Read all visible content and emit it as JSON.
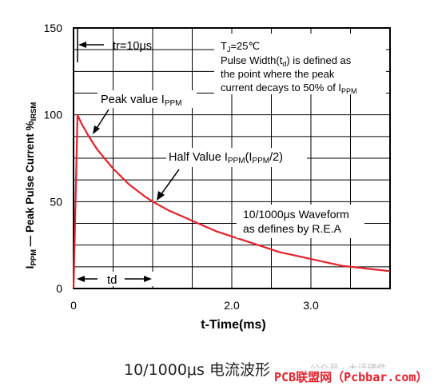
{
  "chart_data": {
    "type": "line",
    "title": "",
    "xlabel": "t-Time(ms)",
    "ylabel_parts": {
      "sym": "I",
      "sub": "PPM",
      "dash": " — Peak Pulse Current  %",
      "sub2": "IRSM"
    },
    "xlim": [
      0,
      4.0
    ],
    "ylim": [
      0,
      150
    ],
    "x_ticks": [
      {
        "value": 0,
        "label": "0"
      },
      {
        "value": 2.0,
        "label": "2.0"
      },
      {
        "value": 3.0,
        "label": "3.0"
      }
    ],
    "y_ticks": [
      {
        "value": 0,
        "label": "0"
      },
      {
        "value": 50,
        "label": "50"
      },
      {
        "value": 100,
        "label": "100"
      },
      {
        "value": 150,
        "label": "150"
      }
    ],
    "grid": true,
    "series": [
      {
        "color": "#e8202a",
        "x": [
          0,
          0.05,
          0.1,
          0.2,
          0.3,
          0.5,
          0.7,
          0.9,
          1.0,
          1.2,
          1.4,
          1.6,
          1.8,
          2.0,
          2.2,
          2.4,
          2.6,
          2.8,
          3.0,
          3.2,
          3.4,
          3.6,
          3.8,
          4.0
        ],
        "y": [
          0,
          100,
          95,
          87,
          80,
          69,
          60,
          53,
          50,
          45,
          41,
          37,
          33,
          30,
          27,
          24,
          21,
          19,
          17,
          15,
          13,
          12,
          11,
          10
        ]
      }
    ],
    "annotations": {
      "tr": "tr=10μs",
      "td": "td",
      "peak": {
        "pre": "Peak value I",
        "sub": "PPM"
      },
      "half": {
        "pre": "Half Value I",
        "sub1": "PPM",
        "mid": "(I",
        "sub2": "PPM",
        "post": "/2)"
      },
      "info_l1_pre": "T",
      "info_l1_sub": "J",
      "info_l1_post": "=25℃",
      "info_l2_pre": "Pulse Width(t",
      "info_l2_sub": "d",
      "info_l2_post": ") is defined as",
      "info_l3": "the point where the peak",
      "info_l4_pre": "current decays to 50% of I",
      "info_l4_sub": "PPM",
      "wave_l1": "10/1000μs Waveform",
      "wave_l2": "as defines by R.E.A"
    }
  },
  "caption": "10/1000μs 电流波形",
  "watermark": {
    "wechat": "公众号 · 大话硬件",
    "site": "PCB联盟网（Pcbbar.com）"
  }
}
